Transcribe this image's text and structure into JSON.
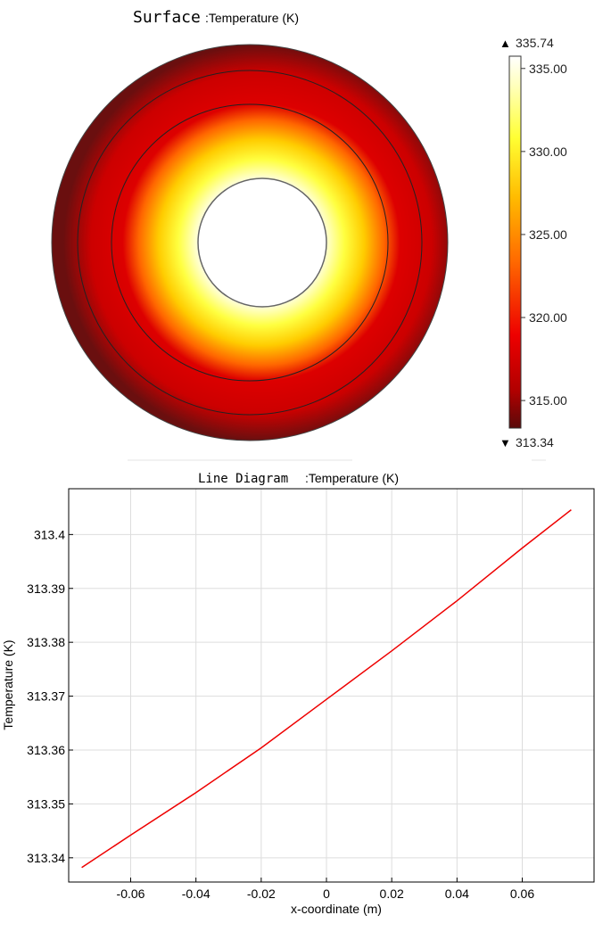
{
  "surface_plot": {
    "title_prefix": "Surface",
    "title_suffix": ":Temperature (K)",
    "colorbar": {
      "max_label": "335.74",
      "min_label": "313.34",
      "max_marker": "▲",
      "min_marker": "▼",
      "ticks": [
        "335.00",
        "330.00",
        "325.00",
        "320.00",
        "315.00"
      ]
    },
    "colors": {
      "hot": "#ffffff",
      "warm": "#ffff33",
      "mid": "#ff8c00",
      "cool": "#dd0000",
      "cold": "#5a0a0a"
    }
  },
  "chart_data": {
    "type": "line",
    "title_prefix": "Line Diagram",
    "title_suffix": ":Temperature (K)",
    "xlabel": "x-coordinate (m)",
    "ylabel": "Temperature (K)",
    "xlim": [
      -0.079,
      0.082
    ],
    "ylim": [
      313.3355,
      313.4085
    ],
    "xticks": [
      -0.06,
      -0.04,
      -0.02,
      0,
      0.02,
      0.04,
      0.06
    ],
    "xtick_labels": [
      "-0.06",
      "-0.04",
      "-0.02",
      "0",
      "0.02",
      "0.04",
      "0.06"
    ],
    "yticks": [
      313.34,
      313.35,
      313.36,
      313.37,
      313.38,
      313.39,
      313.4
    ],
    "ytick_labels": [
      "313.34",
      "313.35",
      "313.36",
      "313.37",
      "313.38",
      "313.39",
      "313.4"
    ],
    "grid": true,
    "series": [
      {
        "name": "Temperature",
        "color": "#ee0000",
        "x": [
          -0.075,
          -0.06,
          -0.04,
          -0.02,
          0,
          0.02,
          0.04,
          0.06,
          0.075
        ],
        "y": [
          313.3382,
          313.3442,
          313.3521,
          313.3604,
          313.3694,
          313.3784,
          313.3877,
          313.3975,
          313.4046
        ]
      }
    ]
  }
}
